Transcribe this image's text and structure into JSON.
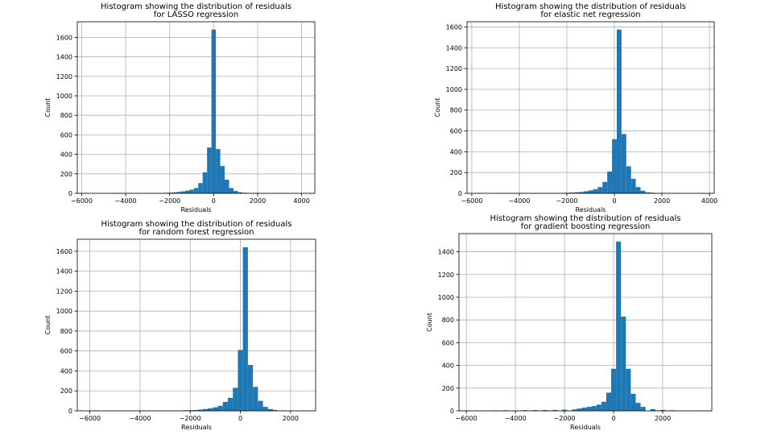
{
  "chart_data": [
    {
      "type": "bar",
      "title": [
        "Histogram showing the distribution of residuals",
        "for LASSO regression"
      ],
      "xlabel": "Residuals",
      "ylabel": "Count",
      "xlim": [
        -6200,
        4600
      ],
      "ylim": [
        0,
        1760
      ],
      "xticks": [
        -6000,
        -4000,
        -2000,
        0,
        2000,
        4000
      ],
      "yticks": [
        0,
        200,
        400,
        600,
        800,
        1000,
        1200,
        1400,
        1600
      ],
      "grid": true,
      "color": "#1f77b4",
      "bin_width": 200,
      "bins_start": [
        -5900,
        -4500,
        -4300,
        -3900,
        -3500,
        -3300,
        -3100,
        -2700,
        -2500,
        -2300,
        -2100,
        -1900,
        -1700,
        -1500,
        -1300,
        -1100,
        -900,
        -700,
        -500,
        -300,
        -100,
        100,
        300,
        500,
        700,
        900,
        1100,
        1300,
        1500,
        1900,
        2900,
        4300
      ],
      "counts": [
        2,
        3,
        3,
        2,
        2,
        2,
        3,
        3,
        4,
        5,
        7,
        10,
        14,
        20,
        28,
        38,
        55,
        105,
        215,
        470,
        1680,
        455,
        280,
        140,
        55,
        25,
        12,
        6,
        4,
        2,
        2,
        1
      ]
    },
    {
      "type": "bar",
      "title": [
        "Histogram showing the distribution of residuals",
        "for elastic net regression"
      ],
      "xlabel": "Residuals",
      "ylabel": "Count",
      "xlim": [
        -6200,
        4200
      ],
      "ylim": [
        0,
        1650
      ],
      "xticks": [
        -6000,
        -4000,
        -2000,
        0,
        2000,
        4000
      ],
      "yticks": [
        0,
        200,
        400,
        600,
        800,
        1000,
        1200,
        1400,
        1600
      ],
      "grid": true,
      "color": "#1f77b4",
      "bin_width": 200,
      "bins_start": [
        -5700,
        -4700,
        -4300,
        -3900,
        -3500,
        -3100,
        -2700,
        -2300,
        -2100,
        -1900,
        -1700,
        -1500,
        -1300,
        -1100,
        -900,
        -700,
        -500,
        -300,
        -100,
        100,
        300,
        500,
        700,
        900,
        1100,
        1300,
        1500,
        1900,
        2500,
        3500
      ],
      "counts": [
        2,
        3,
        2,
        3,
        2,
        3,
        3,
        4,
        5,
        7,
        10,
        13,
        20,
        28,
        40,
        60,
        110,
        210,
        520,
        1575,
        570,
        260,
        140,
        60,
        25,
        10,
        6,
        3,
        2,
        1
      ]
    },
    {
      "type": "bar",
      "title": [
        "Histogram showing the distribution of residuals",
        "for random forest regression"
      ],
      "xlabel": "Residuals",
      "ylabel": "Count",
      "xlim": [
        -6500,
        3000
      ],
      "ylim": [
        0,
        1720
      ],
      "xticks": [
        -6000,
        -4000,
        -2000,
        0,
        2000
      ],
      "yticks": [
        0,
        200,
        400,
        600,
        800,
        1000,
        1200,
        1400,
        1600
      ],
      "grid": true,
      "color": "#1f77b4",
      "bin_width": 200,
      "bins_start": [
        -6100,
        -4100,
        -3900,
        -2700,
        -2300,
        -2100,
        -1900,
        -1700,
        -1500,
        -1300,
        -1100,
        -900,
        -700,
        -500,
        -300,
        -100,
        100,
        300,
        500,
        700,
        900,
        1100,
        1300,
        1700,
        2500
      ],
      "counts": [
        2,
        3,
        3,
        3,
        5,
        6,
        8,
        12,
        18,
        25,
        35,
        50,
        90,
        130,
        230,
        610,
        1640,
        460,
        240,
        100,
        40,
        18,
        8,
        4,
        3
      ]
    },
    {
      "type": "bar",
      "title": [
        "Histogram showing the distribution of residuals",
        "for gradient boosting regression"
      ],
      "xlabel": "Residuals",
      "ylabel": "Count",
      "xlim": [
        -6300,
        4000
      ],
      "ylim": [
        0,
        1560
      ],
      "xticks": [
        -6000,
        -4000,
        -2000,
        0,
        2000
      ],
      "yticks": [
        0,
        200,
        400,
        600,
        800,
        1000,
        1200,
        1400
      ],
      "grid": true,
      "color": "#1f77b4",
      "bin_width": 200,
      "bins_start": [
        -6100,
        -4900,
        -4500,
        -3700,
        -3300,
        -2900,
        -2500,
        -2100,
        -1700,
        -1500,
        -1300,
        -1100,
        -900,
        -700,
        -500,
        -300,
        -100,
        100,
        300,
        500,
        700,
        900,
        1100,
        1500,
        1900,
        2300,
        3500
      ],
      "counts": [
        3,
        4,
        5,
        6,
        6,
        7,
        8,
        10,
        12,
        20,
        28,
        35,
        42,
        55,
        80,
        160,
        370,
        1490,
        830,
        370,
        150,
        70,
        35,
        15,
        8,
        5,
        3
      ]
    }
  ]
}
